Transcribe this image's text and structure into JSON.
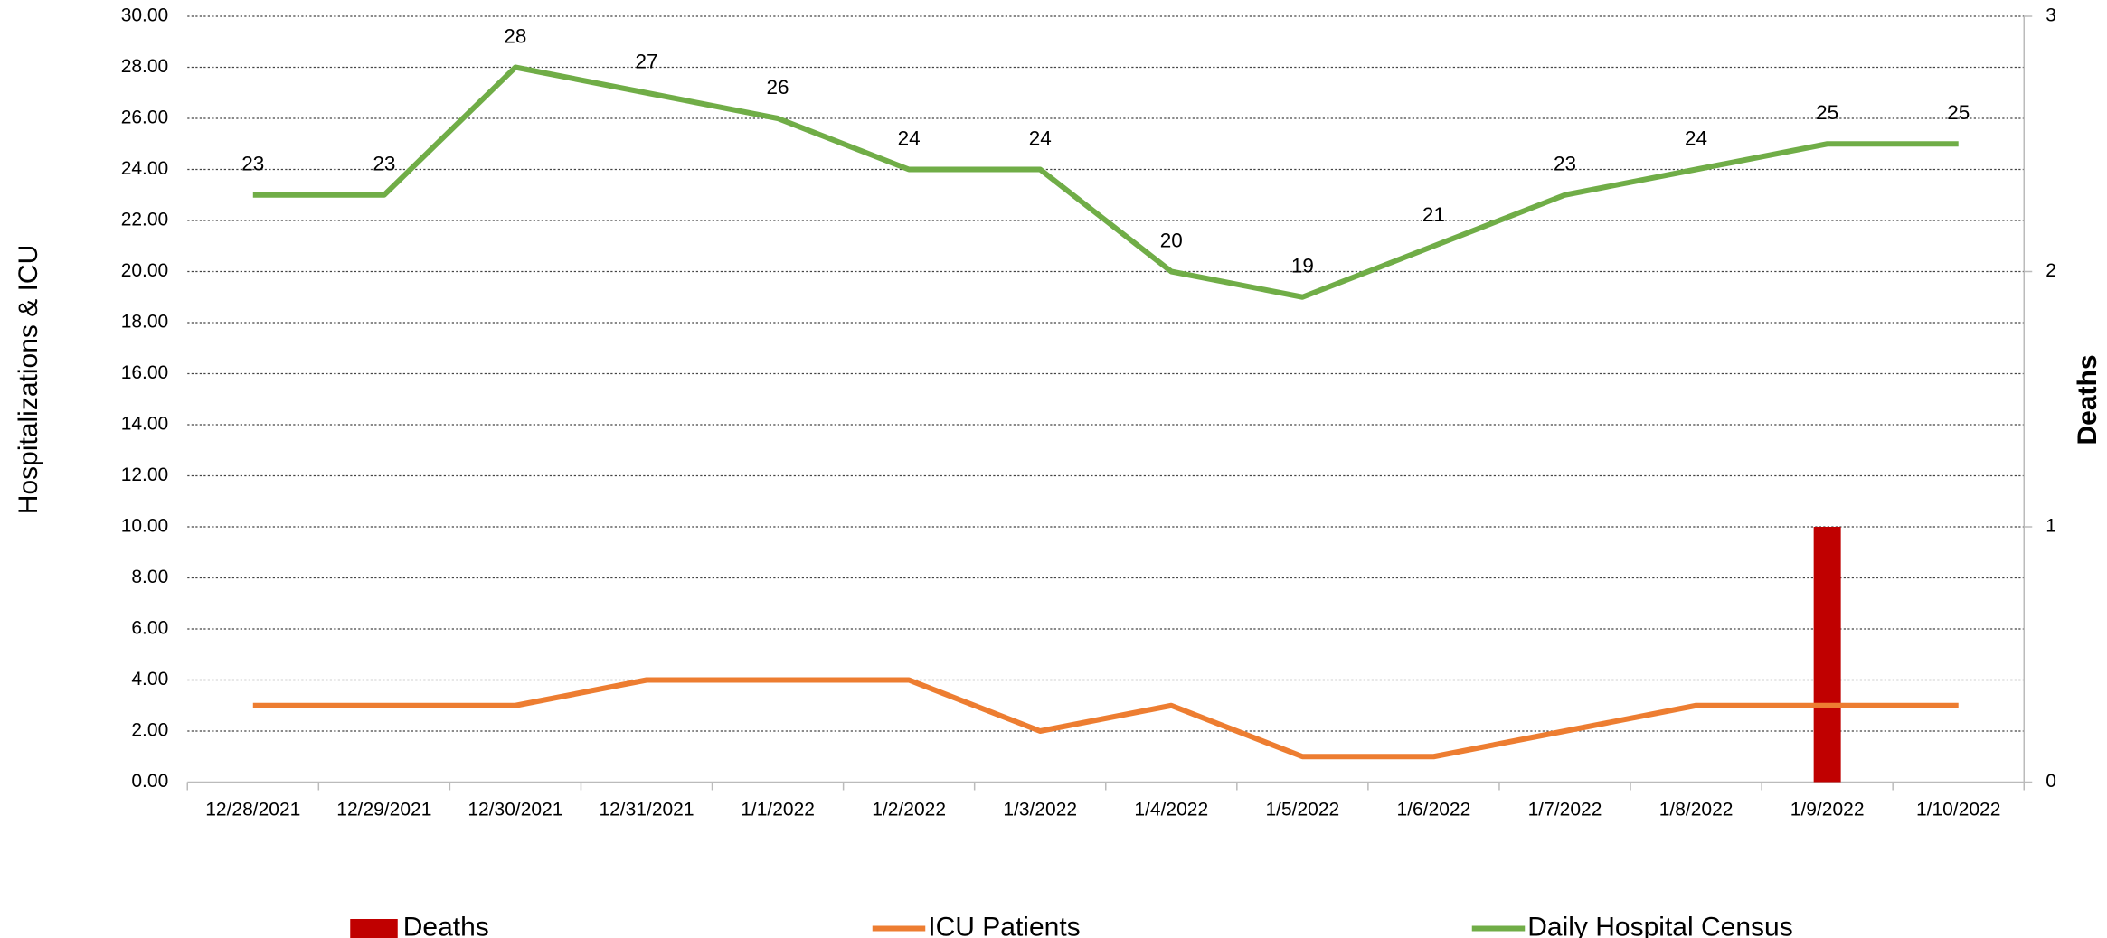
{
  "chart_data": {
    "type": "bar-line",
    "y_label": "Hospitalizations & ICU",
    "y2_label": "Deaths",
    "categories": [
      "12/28/2021",
      "12/29/2021",
      "12/30/2021",
      "12/31/2021",
      "1/1/2022",
      "1/2/2022",
      "1/3/2022",
      "1/4/2022",
      "1/5/2022",
      "1/6/2022",
      "1/7/2022",
      "1/8/2022",
      "1/9/2022",
      "1/10/2022"
    ],
    "series": [
      {
        "name": "Deaths",
        "type": "bar",
        "axis": "y2",
        "color": "#c00000",
        "values": [
          0,
          0,
          0,
          0,
          0,
          0,
          0,
          0,
          0,
          0,
          0,
          0,
          1,
          0
        ]
      },
      {
        "name": "ICU Patients",
        "type": "line",
        "color": "#ed7d31",
        "values": [
          3,
          3,
          3,
          4,
          4,
          4,
          2,
          3,
          1,
          1,
          2,
          3,
          3,
          3
        ]
      },
      {
        "name": "Daily Hospital Census",
        "type": "line",
        "color": "#70ad47",
        "data_labels": true,
        "values": [
          23,
          23,
          28,
          27,
          26,
          24,
          24,
          20,
          19,
          21,
          23,
          24,
          25,
          25
        ]
      }
    ],
    "ylim": [
      0,
      30
    ],
    "yticks": [
      {
        "value": 0,
        "label": "0.00"
      },
      {
        "value": 2,
        "label": "2.00"
      },
      {
        "value": 4,
        "label": "4.00"
      },
      {
        "value": 6,
        "label": "6.00"
      },
      {
        "value": 8,
        "label": "8.00"
      },
      {
        "value": 10,
        "label": "10.00"
      },
      {
        "value": 12,
        "label": "12.00"
      },
      {
        "value": 14,
        "label": "14.00"
      },
      {
        "value": 16,
        "label": "16.00"
      },
      {
        "value": 18,
        "label": "18.00"
      },
      {
        "value": 20,
        "label": "20.00"
      },
      {
        "value": 22,
        "label": "22.00"
      },
      {
        "value": 24,
        "label": "24.00"
      },
      {
        "value": 26,
        "label": "26.00"
      },
      {
        "value": 28,
        "label": "28.00"
      },
      {
        "value": 30,
        "label": "30.00"
      }
    ],
    "y2lim": [
      0,
      3
    ],
    "y2ticks": [
      0,
      1,
      2,
      3
    ],
    "grid": true,
    "legend": "bottom"
  }
}
